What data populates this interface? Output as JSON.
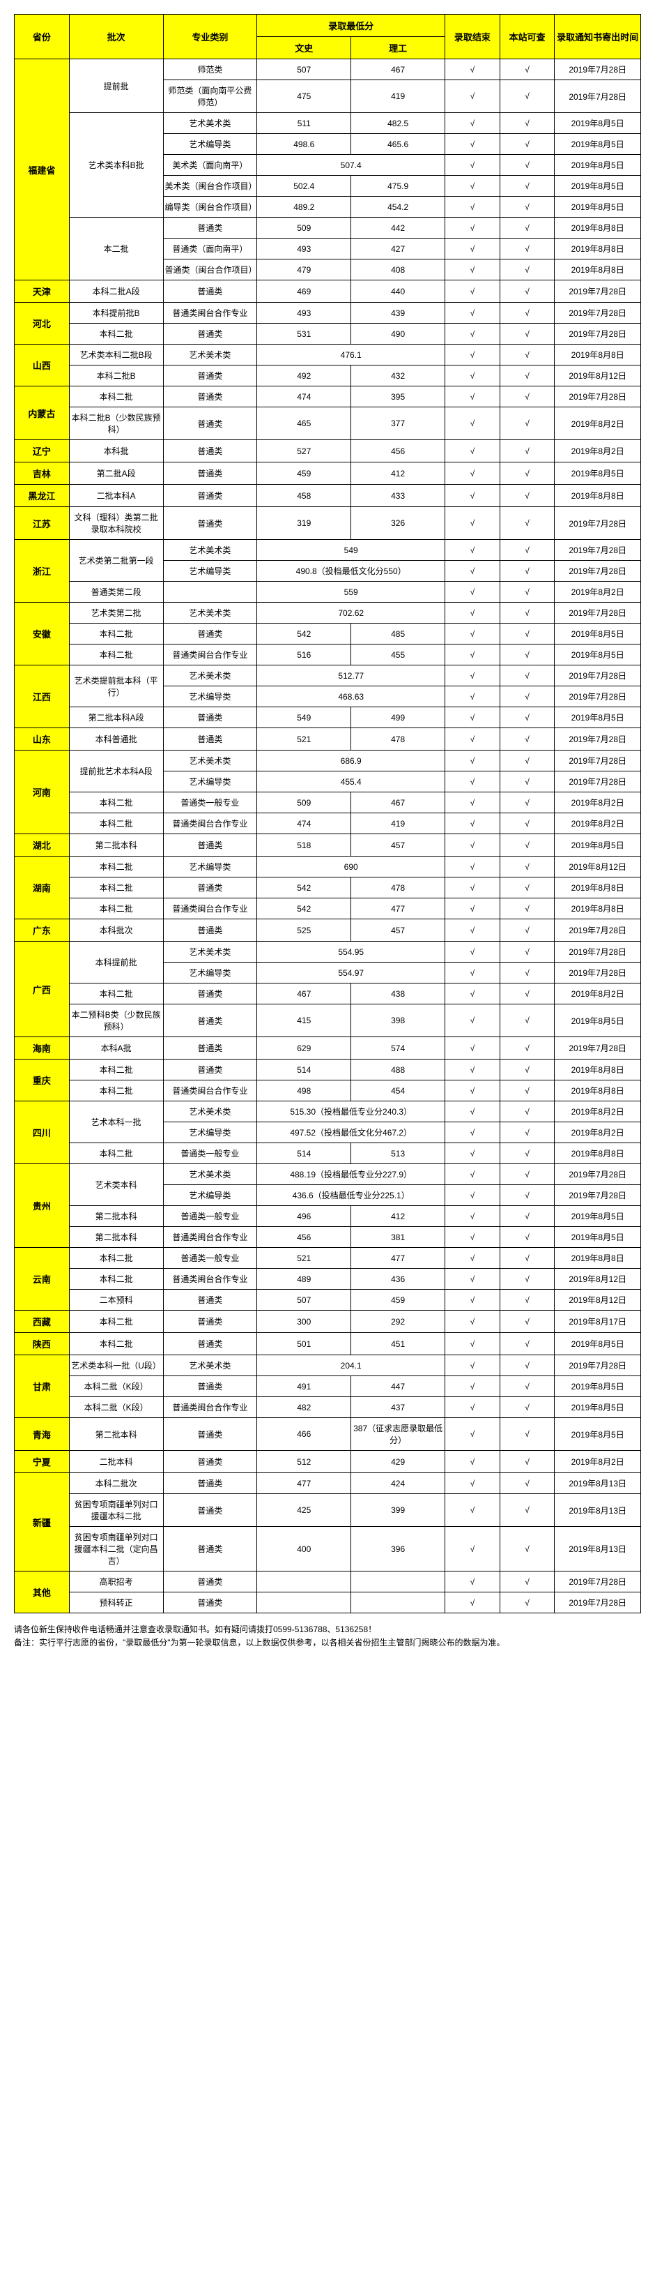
{
  "header": {
    "province": "省份",
    "batch": "批次",
    "type": "专业类别",
    "score_group": "录取最低分",
    "wen": "文史",
    "li": "理工",
    "result": "录取结束",
    "site": "本站可查",
    "date": "录取通知书寄出时间"
  },
  "footer_line1": "请各位新生保持收件电话畅通并注意查收录取通知书。如有疑问请拨打0599-5136788、5136258！",
  "footer_line2": "备注：实行平行志愿的省份，\"录取最低分\"为第一轮录取信息，以上数据仅供参考，以各相关省份招生主管部门揭晓公布的数据为准。",
  "rows": [
    [
      "福建省",
      10,
      "提前批",
      2,
      "师范类",
      "507",
      "467",
      "",
      "√",
      "√",
      "2019年7月28日"
    ],
    [
      "",
      "",
      "",
      "",
      "师范类（面向南平公费师范）",
      "475",
      "419",
      "",
      "√",
      "√",
      "2019年7月28日"
    ],
    [
      "",
      "",
      "艺术类本科B批",
      5,
      "艺术美术类",
      "511",
      "482.5",
      "",
      "√",
      "√",
      "2019年8月5日"
    ],
    [
      "",
      "",
      "",
      "",
      "艺术编导类",
      "498.6",
      "465.6",
      "",
      "√",
      "√",
      "2019年8月5日"
    ],
    [
      "",
      "",
      "",
      "",
      "美术类（面向南平）",
      "507.4",
      "",
      "span2",
      "√",
      "√",
      "2019年8月5日"
    ],
    [
      "",
      "",
      "",
      "",
      "美术类（闽台合作项目）",
      "502.4",
      "475.9",
      "",
      "√",
      "√",
      "2019年8月5日"
    ],
    [
      "",
      "",
      "",
      "",
      "编导类（闽台合作项目）",
      "489.2",
      "454.2",
      "",
      "√",
      "√",
      "2019年8月5日"
    ],
    [
      "",
      "",
      "本二批",
      3,
      "普通类",
      "509",
      "442",
      "",
      "√",
      "√",
      "2019年8月8日"
    ],
    [
      "",
      "",
      "",
      "",
      "普通类（面向南平）",
      "493",
      "427",
      "",
      "√",
      "√",
      "2019年8月8日"
    ],
    [
      "",
      "",
      "",
      "",
      "普通类（闽台合作项目）",
      "479",
      "408",
      "",
      "√",
      "√",
      "2019年8月8日"
    ],
    [
      "天津",
      1,
      "本科二批A段",
      1,
      "普通类",
      "469",
      "440",
      "",
      "√",
      "√",
      "2019年7月28日"
    ],
    [
      "河北",
      2,
      "本科提前批B",
      1,
      "普通类闽台合作专业",
      "493",
      "439",
      "",
      "√",
      "√",
      "2019年7月28日"
    ],
    [
      "",
      "",
      "本科二批",
      1,
      "普通类",
      "531",
      "490",
      "",
      "√",
      "√",
      "2019年7月28日"
    ],
    [
      "山西",
      2,
      "艺术类本科二批B段",
      1,
      "艺术美术类",
      "476.1",
      "",
      "span2",
      "√",
      "√",
      "2019年8月8日"
    ],
    [
      "",
      "",
      "本科二批B",
      1,
      "普通类",
      "492",
      "432",
      "",
      "√",
      "√",
      "2019年8月12日"
    ],
    [
      "内蒙古",
      2,
      "本科二批",
      1,
      "普通类",
      "474",
      "395",
      "",
      "√",
      "√",
      "2019年7月28日"
    ],
    [
      "",
      "",
      "本科二批B（少数民族预科）",
      1,
      "普通类",
      "465",
      "377",
      "",
      "√",
      "√",
      "2019年8月2日"
    ],
    [
      "辽宁",
      1,
      "本科批",
      1,
      "普通类",
      "527",
      "456",
      "",
      "√",
      "√",
      "2019年8月2日"
    ],
    [
      "吉林",
      1,
      "第二批A段",
      1,
      "普通类",
      "459",
      "412",
      "",
      "√",
      "√",
      "2019年8月5日"
    ],
    [
      "黑龙江",
      1,
      "二批本科A",
      1,
      "普通类",
      "458",
      "433",
      "",
      "√",
      "√",
      "2019年8月8日"
    ],
    [
      "江苏",
      1,
      "文科（理科）类第二批录取本科院校",
      1,
      "普通类",
      "319",
      "326",
      "",
      "√",
      "√",
      "2019年7月28日"
    ],
    [
      "浙江",
      3,
      "艺术类第二批第一段",
      2,
      "艺术美术类",
      "549",
      "",
      "span2",
      "√",
      "√",
      "2019年7月28日"
    ],
    [
      "",
      "",
      "",
      "",
      "艺术编导类",
      "490.8（投档最低文化分550）",
      "",
      "span2",
      "√",
      "√",
      "2019年7月28日"
    ],
    [
      "",
      "",
      "普通类第二段",
      1,
      "",
      "559",
      "",
      "span2",
      "√",
      "√",
      "2019年8月2日"
    ],
    [
      "安徽",
      3,
      "艺术类第二批",
      1,
      "艺术美术类",
      "702.62",
      "",
      "span2",
      "√",
      "√",
      "2019年7月28日"
    ],
    [
      "",
      "",
      "本科二批",
      1,
      "普通类",
      "542",
      "485",
      "",
      "√",
      "√",
      "2019年8月5日"
    ],
    [
      "",
      "",
      "本科二批",
      1,
      "普通类闽台合作专业",
      "516",
      "455",
      "",
      "√",
      "√",
      "2019年8月5日"
    ],
    [
      "江西",
      3,
      "艺术类提前批本科（平行）",
      2,
      "艺术美术类",
      "512.77",
      "",
      "span2",
      "√",
      "√",
      "2019年7月28日"
    ],
    [
      "",
      "",
      "",
      "",
      "艺术编导类",
      "468.63",
      "",
      "span2",
      "√",
      "√",
      "2019年7月28日"
    ],
    [
      "",
      "",
      "第二批本科A段",
      1,
      "普通类",
      "549",
      "499",
      "",
      "√",
      "√",
      "2019年8月5日"
    ],
    [
      "山东",
      1,
      "本科普通批",
      1,
      "普通类",
      "521",
      "478",
      "",
      "√",
      "√",
      "2019年7月28日"
    ],
    [
      "河南",
      4,
      "提前批艺术本科A段",
      2,
      "艺术美术类",
      "686.9",
      "",
      "span2",
      "√",
      "√",
      "2019年7月28日"
    ],
    [
      "",
      "",
      "",
      "",
      "艺术编导类",
      "455.4",
      "",
      "span2",
      "√",
      "√",
      "2019年7月28日"
    ],
    [
      "",
      "",
      "本科二批",
      1,
      "普通类一般专业",
      "509",
      "467",
      "",
      "√",
      "√",
      "2019年8月2日"
    ],
    [
      "",
      "",
      "本科二批",
      1,
      "普通类闽台合作专业",
      "474",
      "419",
      "",
      "√",
      "√",
      "2019年8月2日"
    ],
    [
      "湖北",
      1,
      "第二批本科",
      1,
      "普通类",
      "518",
      "457",
      "",
      "√",
      "√",
      "2019年8月5日"
    ],
    [
      "湖南",
      3,
      "本科二批",
      1,
      "艺术编导类",
      "690",
      "",
      "span2",
      "√",
      "√",
      "2019年8月12日"
    ],
    [
      "",
      "",
      "本科二批",
      1,
      "普通类",
      "542",
      "478",
      "",
      "√",
      "√",
      "2019年8月8日"
    ],
    [
      "",
      "",
      "本科二批",
      1,
      "普通类闽台合作专业",
      "542",
      "477",
      "",
      "√",
      "√",
      "2019年8月8日"
    ],
    [
      "广东",
      1,
      "本科批次",
      1,
      "普通类",
      "525",
      "457",
      "",
      "√",
      "√",
      "2019年7月28日"
    ],
    [
      "广西",
      4,
      "本科提前批",
      2,
      "艺术美术类",
      "554.95",
      "",
      "span2",
      "√",
      "√",
      "2019年7月28日"
    ],
    [
      "",
      "",
      "",
      "",
      "艺术编导类",
      "554.97",
      "",
      "span2",
      "√",
      "√",
      "2019年7月28日"
    ],
    [
      "",
      "",
      "本科二批",
      1,
      "普通类",
      "467",
      "438",
      "",
      "√",
      "√",
      "2019年8月2日"
    ],
    [
      "",
      "",
      "本二预科B类（少数民族预科）",
      1,
      "普通类",
      "415",
      "398",
      "",
      "√",
      "√",
      "2019年8月5日"
    ],
    [
      "海南",
      1,
      "本科A批",
      1,
      "普通类",
      "629",
      "574",
      "",
      "√",
      "√",
      "2019年7月28日"
    ],
    [
      "重庆",
      2,
      "本科二批",
      1,
      "普通类",
      "514",
      "488",
      "",
      "√",
      "√",
      "2019年8月8日"
    ],
    [
      "",
      "",
      "本科二批",
      1,
      "普通类闽台合作专业",
      "498",
      "454",
      "",
      "√",
      "√",
      "2019年8月8日"
    ],
    [
      "四川",
      3,
      "艺术本科一批",
      2,
      "艺术美术类",
      "515.30（投档最低专业分240.3）",
      "",
      "span2",
      "√",
      "√",
      "2019年8月2日"
    ],
    [
      "",
      "",
      "",
      "",
      "艺术编导类",
      "497.52（投档最低文化分467.2）",
      "",
      "span2",
      "√",
      "√",
      "2019年8月2日"
    ],
    [
      "",
      "",
      "本科二批",
      1,
      "普通类一般专业",
      "514",
      "513",
      "",
      "√",
      "√",
      "2019年8月8日"
    ],
    [
      "贵州",
      4,
      "艺术类本科",
      2,
      "艺术美术类",
      "488.19（投档最低专业分227.9）",
      "",
      "span2",
      "√",
      "√",
      "2019年7月28日"
    ],
    [
      "",
      "",
      "",
      "",
      "艺术编导类",
      "436.6（投档最低专业分225.1）",
      "",
      "span2",
      "√",
      "√",
      "2019年7月28日"
    ],
    [
      "",
      "",
      "第二批本科",
      1,
      "普通类一般专业",
      "496",
      "412",
      "",
      "√",
      "√",
      "2019年8月5日"
    ],
    [
      "",
      "",
      "第二批本科",
      1,
      "普通类闽台合作专业",
      "456",
      "381",
      "",
      "√",
      "√",
      "2019年8月5日"
    ],
    [
      "云南",
      3,
      "本科二批",
      1,
      "普通类一般专业",
      "521",
      "477",
      "",
      "√",
      "√",
      "2019年8月8日"
    ],
    [
      "",
      "",
      "本科二批",
      1,
      "普通类闽台合作专业",
      "489",
      "436",
      "",
      "√",
      "√",
      "2019年8月12日"
    ],
    [
      "",
      "",
      "二本预科",
      1,
      "普通类",
      "507",
      "459",
      "",
      "√",
      "√",
      "2019年8月12日"
    ],
    [
      "西藏",
      1,
      "本科二批",
      1,
      "普通类",
      "300",
      "292",
      "",
      "√",
      "√",
      "2019年8月17日"
    ],
    [
      "陕西",
      1,
      "本科二批",
      1,
      "普通类",
      "501",
      "451",
      "",
      "√",
      "√",
      "2019年8月5日"
    ],
    [
      "甘肃",
      3,
      "艺术类本科一批（U段）",
      1,
      "艺术美术类",
      "204.1",
      "",
      "span2",
      "√",
      "√",
      "2019年7月28日"
    ],
    [
      "",
      "",
      "本科二批（K段）",
      1,
      "普通类",
      "491",
      "447",
      "",
      "√",
      "√",
      "2019年8月5日"
    ],
    [
      "",
      "",
      "本科二批（K段）",
      1,
      "普通类闽台合作专业",
      "482",
      "437",
      "",
      "√",
      "√",
      "2019年8月5日"
    ],
    [
      "青海",
      1,
      "第二批本科",
      1,
      "普通类",
      "466",
      "387（征求志愿录取最低分）",
      "",
      "√",
      "√",
      "2019年8月5日"
    ],
    [
      "宁夏",
      1,
      "二批本科",
      1,
      "普通类",
      "512",
      "429",
      "",
      "√",
      "√",
      "2019年8月2日"
    ],
    [
      "新疆",
      3,
      "本科二批次",
      1,
      "普通类",
      "477",
      "424",
      "",
      "√",
      "√",
      "2019年8月13日"
    ],
    [
      "",
      "",
      "贫困专项南疆单列对口援疆本科二批",
      1,
      "普通类",
      "425",
      "399",
      "",
      "√",
      "√",
      "2019年8月13日"
    ],
    [
      "",
      "",
      "贫困专项南疆单列对口援疆本科二批（定向昌吉）",
      1,
      "普通类",
      "400",
      "396",
      "",
      "√",
      "√",
      "2019年8月13日"
    ],
    [
      "其他",
      2,
      "高职招考",
      1,
      "普通类",
      "",
      "",
      "",
      "√",
      "√",
      "2019年7月28日"
    ],
    [
      "",
      "",
      "预科转正",
      1,
      "普通类",
      "",
      "",
      "",
      "√",
      "√",
      "2019年7月28日"
    ]
  ]
}
